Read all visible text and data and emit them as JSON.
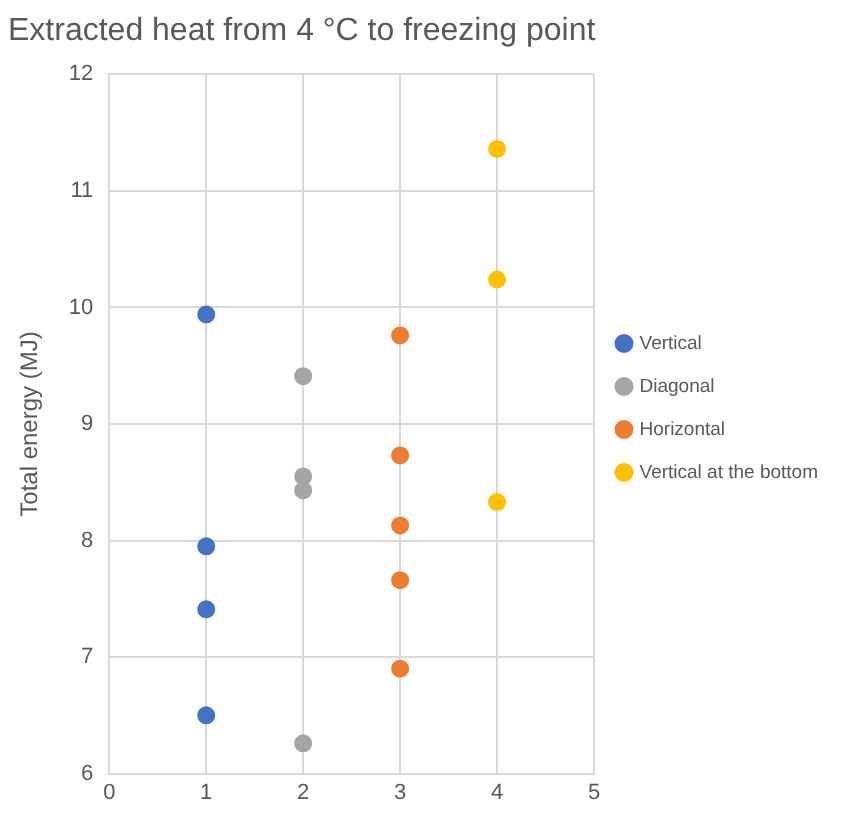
{
  "chart_data": {
    "type": "scatter",
    "title": "Extracted heat from 4 °C to freezing point",
    "ylabel": "Total energy (MJ)",
    "xlim": [
      0,
      5
    ],
    "xticks": [
      0,
      1,
      2,
      3,
      4,
      5
    ],
    "ylim": [
      6,
      12
    ],
    "yticks": [
      6,
      7,
      8,
      9,
      10,
      11,
      12
    ],
    "grid": true,
    "legend": "right",
    "marker": "circle",
    "series": [
      {
        "name": "Vertical",
        "color": "#4472c4",
        "x": [
          1,
          1,
          1,
          1
        ],
        "values": [
          9.94,
          7.95,
          7.41,
          6.5
        ]
      },
      {
        "name": "Diagonal",
        "color": "#a5a5a5",
        "x": [
          2,
          2,
          2,
          2
        ],
        "values": [
          9.41,
          8.55,
          8.43,
          6.26
        ]
      },
      {
        "name": "Horizontal",
        "color": "#ed7d31",
        "x": [
          3,
          3,
          3,
          3,
          3
        ],
        "values": [
          9.76,
          8.73,
          8.13,
          7.66,
          6.9
        ]
      },
      {
        "name": "Vertical at the bottom",
        "color": "#ffc000",
        "x": [
          4,
          4,
          4
        ],
        "values": [
          11.36,
          10.24,
          8.33
        ]
      }
    ]
  }
}
